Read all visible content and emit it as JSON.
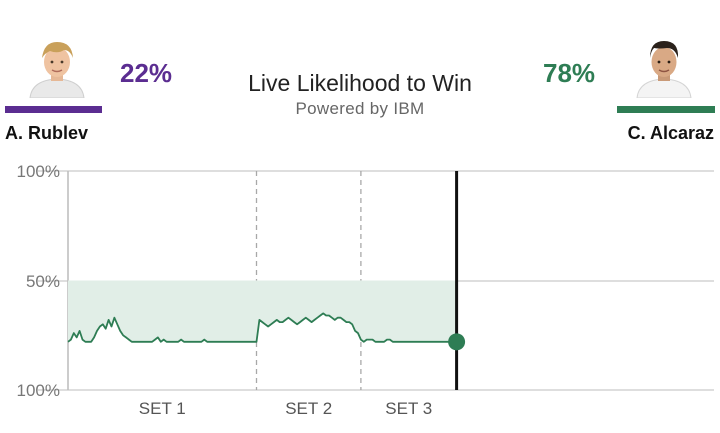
{
  "header": {
    "title": "Live Likelihood to Win",
    "subtitle": "Powered by IBM"
  },
  "players": {
    "left": {
      "name": "A. Rublev",
      "percent": "22%",
      "color": "#5b2d91",
      "avatar_icon": "player-photo-rublev"
    },
    "right": {
      "name": "C. Alcaraz",
      "percent": "78%",
      "color": "#2e7d54",
      "avatar_icon": "player-photo-alcaraz"
    }
  },
  "chart_data": {
    "type": "area",
    "y_tick_labels": [
      "100%",
      "50%",
      "100%"
    ],
    "baseline": 50,
    "ylim": [
      0,
      100
    ],
    "grid": true,
    "set_labels": [
      "SET 1",
      "SET 2",
      "SET 3"
    ],
    "set_boundaries": [
      65,
      101
    ],
    "current_point": 134,
    "series": [
      {
        "line_color": "#2e7d54",
        "fill_color": "#e1eee7",
        "values": [
          22,
          23,
          26,
          24,
          27,
          23,
          22,
          22,
          22,
          24,
          27,
          29,
          30,
          28,
          32,
          29,
          33,
          30,
          27,
          25,
          24,
          23,
          22,
          22,
          22,
          22,
          22,
          22,
          22,
          22,
          23,
          24,
          22,
          23,
          22,
          22,
          22,
          22,
          22,
          23,
          22,
          22,
          22,
          22,
          22,
          22,
          22,
          23,
          22,
          22,
          22,
          22,
          22,
          22,
          22,
          22,
          22,
          22,
          22,
          22,
          22,
          22,
          22,
          22,
          22,
          22,
          32,
          31,
          30,
          29,
          30,
          31,
          32,
          31,
          31,
          32,
          33,
          32,
          31,
          30,
          31,
          32,
          33,
          32,
          31,
          32,
          33,
          34,
          35,
          34,
          34,
          33,
          32,
          33,
          33,
          32,
          31,
          31,
          30,
          27,
          26,
          23,
          22,
          23,
          23,
          23,
          22,
          22,
          22,
          22,
          23,
          23,
          22,
          22,
          22,
          22,
          22,
          22,
          22,
          22,
          22,
          22,
          22,
          22,
          22,
          22,
          22,
          22,
          22,
          22,
          22,
          22,
          22,
          22,
          22
        ]
      }
    ]
  }
}
